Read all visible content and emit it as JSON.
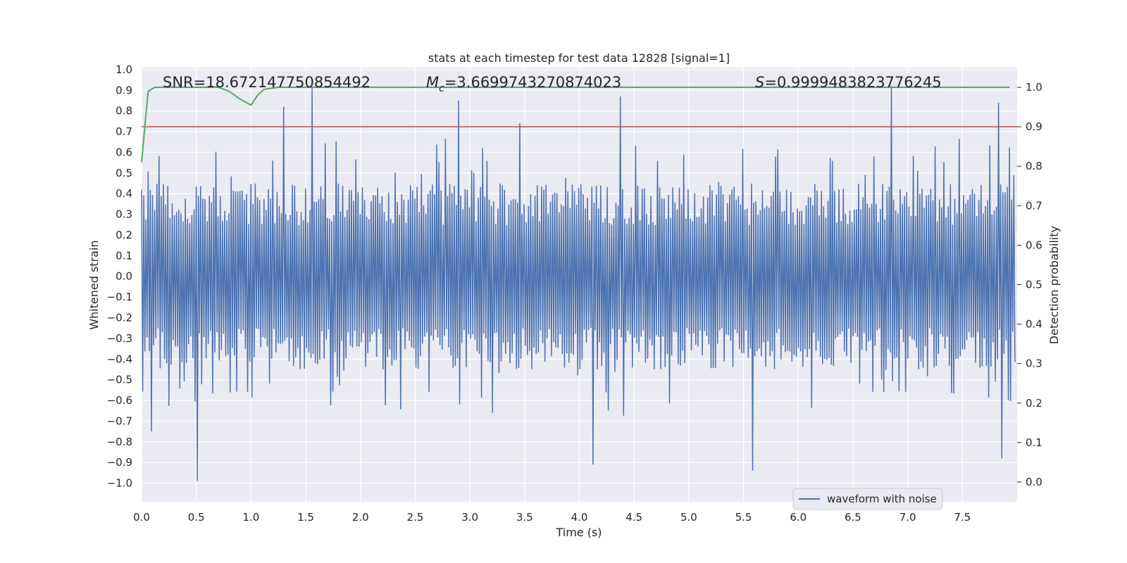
{
  "chart_data": {
    "type": "line",
    "title": "stats at each timestep for test data 12828 [signal=1]",
    "xlabel": "Time (s)",
    "ylabel": "Whitened strain",
    "y2label": "Detection probability",
    "xlim": [
      0.0,
      8.0
    ],
    "ylim": [
      -1.09,
      1.01
    ],
    "y2lim": [
      -0.05,
      1.05
    ],
    "grid": true,
    "x_ticks": [
      "0.0",
      "0.5",
      "1.0",
      "1.5",
      "2.0",
      "2.5",
      "3.0",
      "3.5",
      "4.0",
      "4.5",
      "5.0",
      "5.5",
      "6.0",
      "6.5",
      "7.0",
      "7.5"
    ],
    "x_tick_values": [
      0,
      0.5,
      1,
      1.5,
      2,
      2.5,
      3,
      3.5,
      4,
      4.5,
      5,
      5.5,
      6,
      6.5,
      7,
      7.5
    ],
    "y_ticks": [
      "1.0",
      "0.9",
      "0.8",
      "0.7",
      "0.6",
      "0.5",
      "0.4",
      "0.3",
      "0.2",
      "0.1",
      "0.0",
      "−0.1",
      "−0.2",
      "−0.3",
      "−0.4",
      "−0.5",
      "−0.6",
      "−0.7",
      "−0.8",
      "−0.9",
      "−1.0"
    ],
    "y_tick_values": [
      1,
      0.9,
      0.8,
      0.7,
      0.6,
      0.5,
      0.4,
      0.3,
      0.2,
      0.1,
      0,
      -0.1,
      -0.2,
      -0.3,
      -0.4,
      -0.5,
      -0.6,
      -0.7,
      -0.8,
      -0.9,
      -1
    ],
    "y2_ticks": [
      "1.0",
      "0.9",
      "0.8",
      "0.7",
      "0.6",
      "0.5",
      "0.4",
      "0.3",
      "0.2",
      "0.1",
      "0.0"
    ],
    "y2_tick_values": [
      1,
      0.9,
      0.8,
      0.7,
      0.6,
      0.5,
      0.4,
      0.3,
      0.2,
      0.1,
      0
    ],
    "waveform": {
      "name": "waveform with noise",
      "color": "#4c72b0",
      "duration_s": 7.98,
      "samples": 800,
      "seed": 12828,
      "typical_abs_max": 0.45,
      "peaks": [
        {
          "t": 1.56,
          "v": 0.91
        },
        {
          "t": 6.85,
          "v": 0.92
        },
        {
          "t": 4.37,
          "v": 0.87
        },
        {
          "t": 0.5,
          "v": -0.99
        },
        {
          "t": 5.58,
          "v": -0.94
        },
        {
          "t": 4.12,
          "v": -0.91
        },
        {
          "t": 3.45,
          "v": 0.74
        },
        {
          "t": 7.82,
          "v": 0.84
        },
        {
          "t": 7.85,
          "v": -0.88
        },
        {
          "t": 0.08,
          "v": -0.75
        },
        {
          "t": 1.3,
          "v": 0.82
        },
        {
          "t": 2.9,
          "v": 0.85
        }
      ]
    },
    "threshold": {
      "value": 0.9,
      "axis": "y2",
      "color": "#c44e52"
    },
    "probability": {
      "color": "#55a868",
      "axis": "y2",
      "points": [
        {
          "t": 0.0,
          "p": 0.81
        },
        {
          "t": 0.06,
          "p": 0.99
        },
        {
          "t": 0.12,
          "p": 1.0
        },
        {
          "t": 0.7,
          "p": 1.0
        },
        {
          "t": 0.8,
          "p": 0.99
        },
        {
          "t": 0.9,
          "p": 0.97
        },
        {
          "t": 1.0,
          "p": 0.955
        },
        {
          "t": 1.06,
          "p": 0.98
        },
        {
          "t": 1.12,
          "p": 0.995
        },
        {
          "t": 1.25,
          "p": 1.0
        },
        {
          "t": 7.93,
          "p": 1.0
        }
      ]
    },
    "annotations": [
      {
        "name": "snr",
        "text": "SNR=18.672147750854492"
      },
      {
        "name": "mc",
        "prefix": "M",
        "subscript": "c",
        "text": "=3.6699743270874023"
      },
      {
        "name": "s",
        "prefix": "S",
        "text": "=0.9999483823776245"
      }
    ],
    "legend": {
      "position": "lower-right",
      "entries": [
        {
          "label": "waveform with noise",
          "color": "#4c72b0"
        }
      ]
    }
  }
}
